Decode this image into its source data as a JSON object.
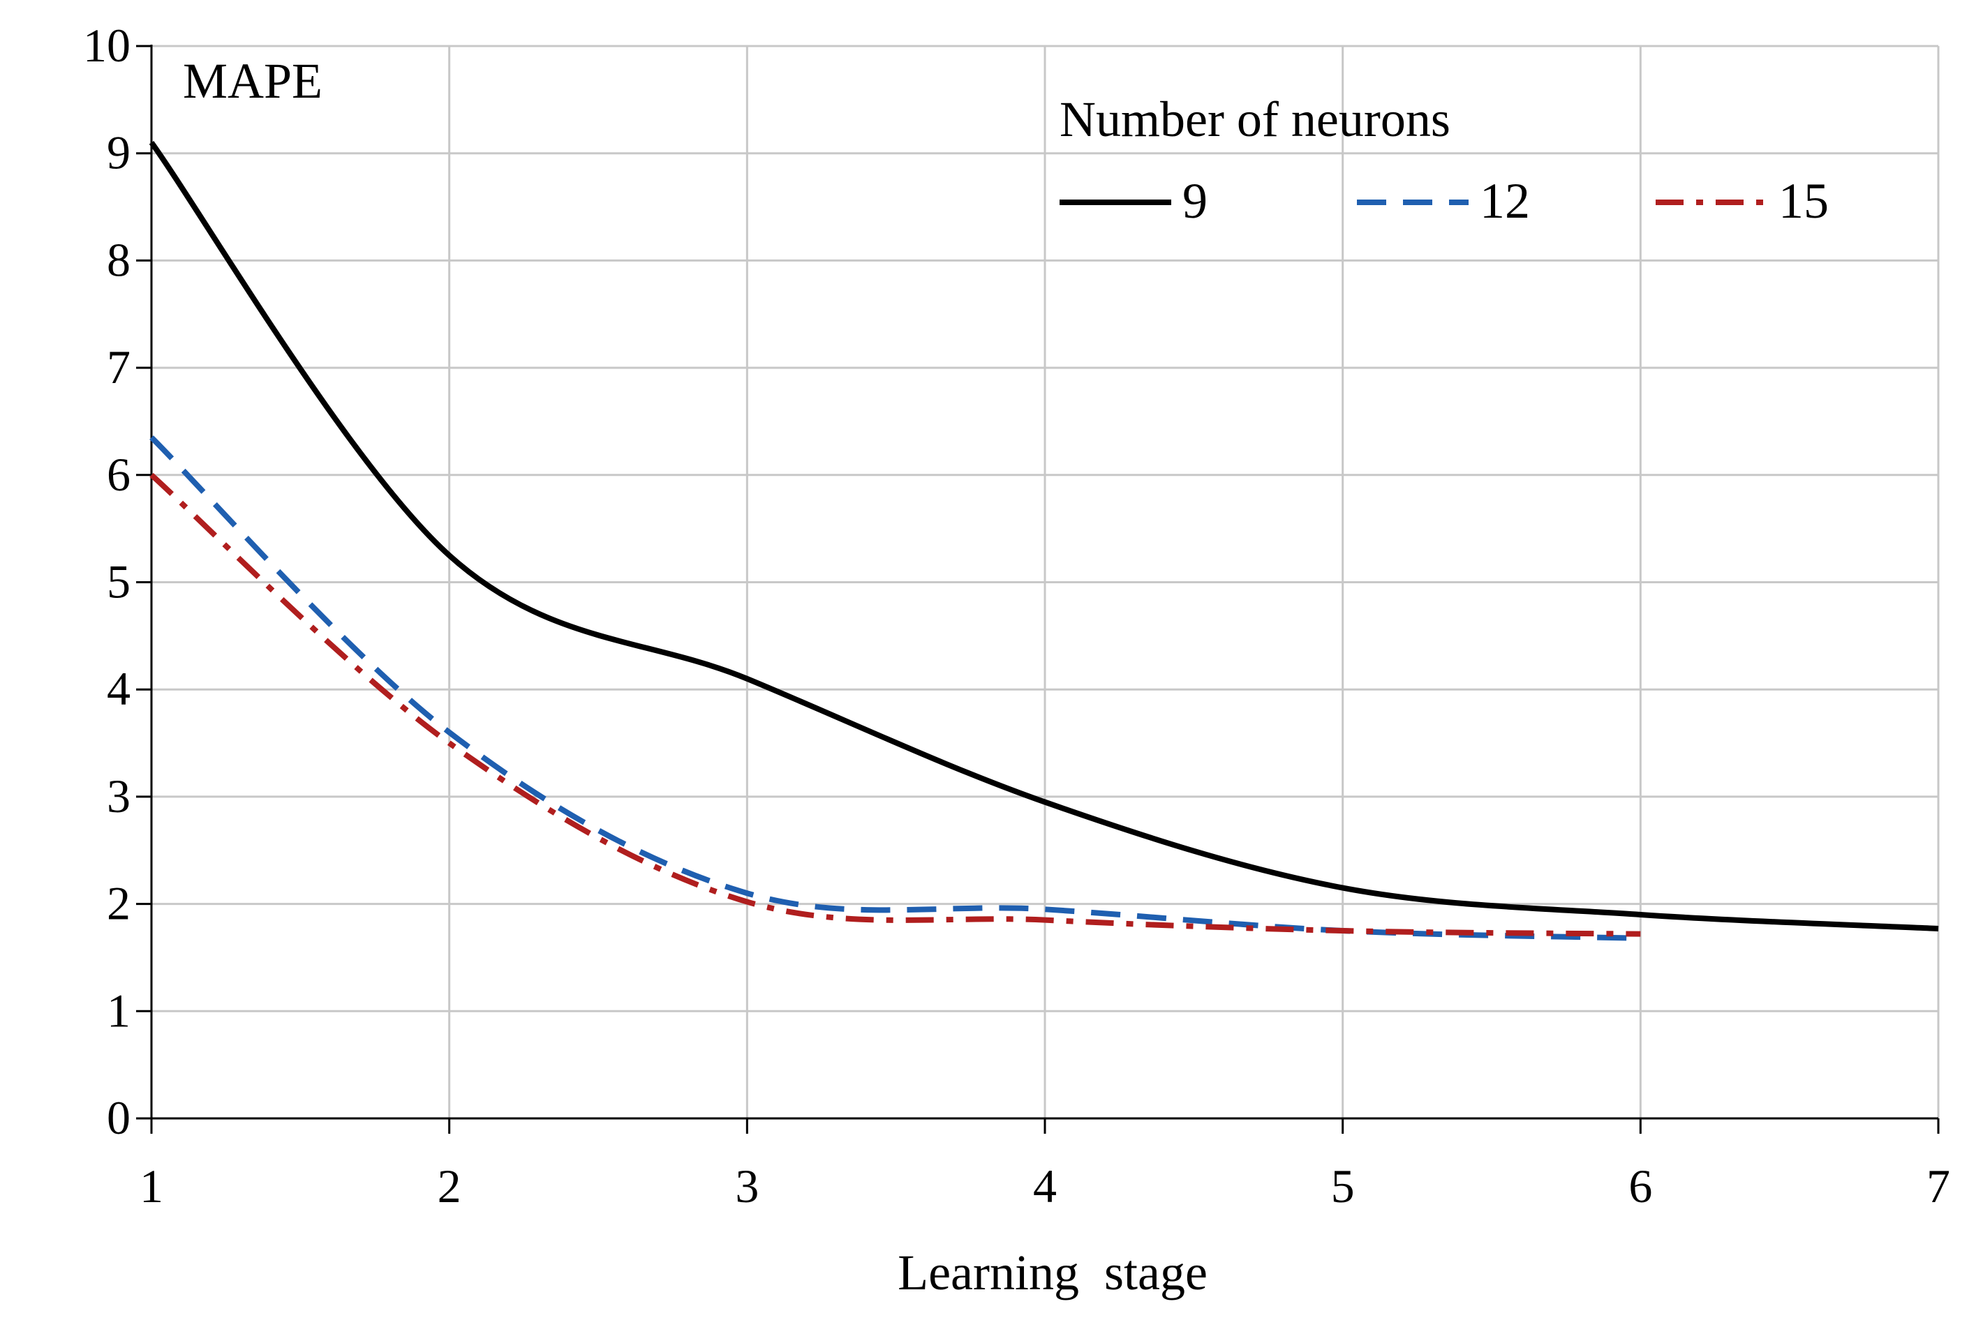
{
  "chart_data": {
    "type": "line",
    "title": "",
    "xlabel": "Learning  stage",
    "ylabel": "MAPE",
    "xlim": [
      1,
      7
    ],
    "ylim": [
      0,
      10
    ],
    "xticks": [
      "1",
      "2",
      "3",
      "4",
      "5",
      "6",
      "7"
    ],
    "yticks": [
      "0",
      "1",
      "2",
      "3",
      "4",
      "5",
      "6",
      "7",
      "8",
      "9",
      "10"
    ],
    "grid": true,
    "legend": {
      "title": "Number of neurons",
      "placement": "top-right"
    },
    "series": [
      {
        "name": "9",
        "color": "#000000",
        "style": "solid",
        "x": [
          1,
          2,
          3,
          4,
          5,
          6,
          7
        ],
        "y": [
          9.1,
          5.25,
          4.1,
          2.95,
          2.15,
          1.9,
          1.77
        ]
      },
      {
        "name": "12",
        "color": "#1f5fb0",
        "style": "dashed",
        "x": [
          1,
          2,
          3,
          4,
          5,
          6
        ],
        "y": [
          6.35,
          3.6,
          2.1,
          1.95,
          1.75,
          1.68
        ]
      },
      {
        "name": "15",
        "color": "#b01e1e",
        "style": "dashdot",
        "x": [
          1,
          2,
          3,
          4,
          5,
          6
        ],
        "y": [
          6.0,
          3.5,
          2.02,
          1.85,
          1.75,
          1.72
        ]
      }
    ]
  }
}
